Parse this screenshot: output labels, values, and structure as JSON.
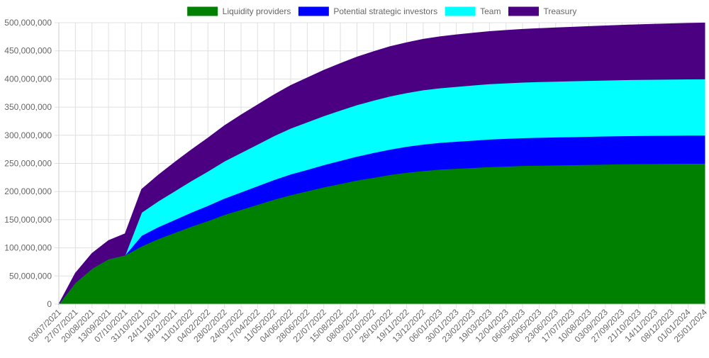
{
  "chart_data": {
    "type": "area",
    "stacked": true,
    "legend_position": "top",
    "grid": true,
    "ylim": [
      0,
      500000000
    ],
    "y_ticks": [
      0,
      50000000,
      100000000,
      150000000,
      200000000,
      250000000,
      300000000,
      350000000,
      400000000,
      450000000,
      500000000
    ],
    "y_tick_labels": [
      "0",
      "50,000,000",
      "100,000,000",
      "150,000,000",
      "200,000,000",
      "250,000,000",
      "300,000,000",
      "350,000,000",
      "400,000,000",
      "450,000,000",
      "500,000,000"
    ],
    "categories": [
      "03/07/2021",
      "27/07/2021",
      "20/08/2021",
      "13/09/2021",
      "07/10/2021",
      "31/10/2021",
      "24/11/2021",
      "18/12/2021",
      "11/01/2022",
      "04/02/2022",
      "28/02/2022",
      "24/03/2022",
      "17/04/2022",
      "11/05/2022",
      "04/06/2022",
      "28/06/2022",
      "22/07/2022",
      "15/08/2022",
      "08/09/2022",
      "02/10/2022",
      "26/10/2022",
      "19/11/2022",
      "13/12/2022",
      "06/01/2023",
      "30/01/2023",
      "23/02/2023",
      "19/03/2023",
      "12/04/2023",
      "06/05/2023",
      "30/05/2023",
      "23/06/2023",
      "17/07/2023",
      "10/08/2023",
      "03/09/2023",
      "27/09/2023",
      "21/10/2023",
      "14/11/2023",
      "08/12/2023",
      "01/01/2024",
      "25/01/2024"
    ],
    "series": [
      {
        "name": "Liquidity providers",
        "color": "#008000",
        "values": [
          0,
          38000000,
          63000000,
          80000000,
          87000000,
          103000000,
          116000000,
          127000000,
          138000000,
          148000000,
          159000000,
          168000000,
          177000000,
          186000000,
          194000000,
          201000000,
          208000000,
          214000000,
          220000000,
          225000000,
          230000000,
          234000000,
          237000000,
          239500000,
          241000000,
          242500000,
          244000000,
          245000000,
          246000000,
          246500000,
          247000000,
          247500000,
          248000000,
          248500000,
          249000000,
          249300000,
          249600000,
          249800000,
          250000000,
          250000000
        ]
      },
      {
        "name": "Potential strategic investors",
        "color": "#0000ff",
        "values": [
          0,
          0,
          0,
          0,
          0,
          19000000,
          21000000,
          23000000,
          25000000,
          27000000,
          29000000,
          31000000,
          33000000,
          35000000,
          37000000,
          38000000,
          39500000,
          41000000,
          42500000,
          44000000,
          45000000,
          46000000,
          47000000,
          47500000,
          48000000,
          48500000,
          49000000,
          49200000,
          49400000,
          49600000,
          49700000,
          49800000,
          49900000,
          50000000,
          50000000,
          50000000,
          50000000,
          50000000,
          50000000,
          50000000
        ]
      },
      {
        "name": "Team",
        "color": "#00ffff",
        "values": [
          0,
          0,
          0,
          0,
          0,
          41000000,
          46000000,
          51000000,
          56000000,
          61000000,
          66000000,
          70000000,
          74000000,
          78000000,
          81500000,
          84500000,
          87000000,
          89500000,
          91500000,
          93000000,
          94500000,
          95500000,
          96500000,
          97000000,
          97500000,
          98000000,
          98300000,
          98600000,
          98800000,
          99000000,
          99100000,
          99200000,
          99300000,
          99400000,
          99500000,
          99600000,
          99700000,
          99800000,
          99900000,
          100000000
        ]
      },
      {
        "name": "Treasury",
        "color": "#4b0082",
        "values": [
          0,
          17000000,
          27000000,
          33000000,
          38000000,
          41000000,
          46000000,
          51000000,
          55000000,
          59000000,
          63000000,
          67000000,
          70000000,
          73000000,
          76000000,
          78500000,
          81000000,
          83000000,
          85000000,
          86500000,
          88000000,
          89000000,
          90000000,
          91000000,
          92000000,
          92500000,
          93000000,
          93500000,
          94000000,
          94500000,
          95000000,
          95500000,
          96000000,
          96500000,
          97000000,
          97500000,
          98000000,
          98500000,
          99000000,
          99500000
        ]
      }
    ]
  }
}
